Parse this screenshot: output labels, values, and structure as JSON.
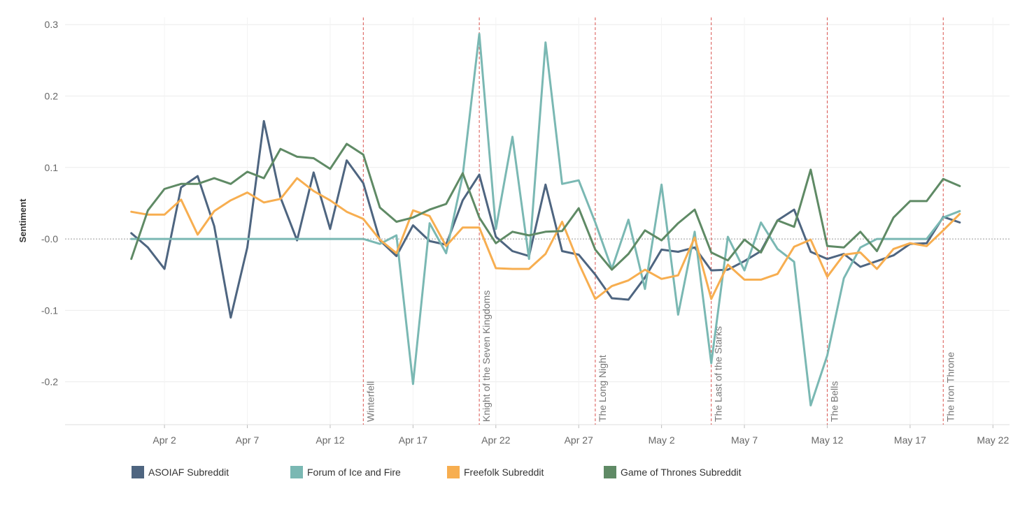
{
  "chart_data": {
    "type": "line",
    "ylabel": "Sentiment",
    "xlabel": "",
    "title": "",
    "x_start_date": "2019-03-31",
    "x_end_date": "2019-05-20",
    "xlim_dates": [
      "2019-03-27",
      "2019-05-23"
    ],
    "ylim": [
      -0.26,
      0.31
    ],
    "y_ticks": [
      0.3,
      0.2,
      0.1,
      -0.0,
      -0.1,
      -0.2
    ],
    "y_tick_labels": [
      "0.3",
      "0.2",
      "0.1",
      "-0.0",
      "-0.1",
      "-0.2"
    ],
    "x_ticks": [
      "2019-04-02",
      "2019-04-07",
      "2019-04-12",
      "2019-04-17",
      "2019-04-22",
      "2019-04-27",
      "2019-05-02",
      "2019-05-07",
      "2019-05-12",
      "2019-05-17",
      "2019-05-22"
    ],
    "x_tick_labels": [
      "Apr 2",
      "Apr 7",
      "Apr 12",
      "Apr 17",
      "Apr 22",
      "Apr 27",
      "May 2",
      "May 7",
      "May 12",
      "May 17",
      "May 22"
    ],
    "grid": true,
    "legend_position": "bottom",
    "episodes": [
      {
        "label": "Winterfell",
        "date": "2019-04-14"
      },
      {
        "label": "Knight of the Seven Kingdoms",
        "date": "2019-04-21"
      },
      {
        "label": "The Long Night",
        "date": "2019-04-28"
      },
      {
        "label": "The Last of the Starks",
        "date": "2019-05-05"
      },
      {
        "label": "The Bells",
        "date": "2019-05-12"
      },
      {
        "label": "The Iron Throne",
        "date": "2019-05-19"
      }
    ],
    "episode_line_color": "#d9534f",
    "zero_line_color": "#999999",
    "series": [
      {
        "name": "ASOIAF Subreddit",
        "color": "#4e6580",
        "values": [
          0.008,
          -0.012,
          -0.042,
          0.072,
          0.088,
          0.018,
          -0.11,
          -0.012,
          0.165,
          0.058,
          -0.002,
          0.093,
          0.014,
          0.11,
          0.078,
          -0.002,
          -0.024,
          0.019,
          -0.003,
          -0.008,
          0.054,
          0.09,
          0.003,
          -0.017,
          -0.024,
          0.076,
          -0.017,
          -0.022,
          -0.05,
          -0.083,
          -0.085,
          -0.054,
          -0.015,
          -0.018,
          -0.012,
          -0.044,
          -0.043,
          -0.031,
          -0.017,
          0.026,
          0.041,
          -0.018,
          -0.028,
          -0.021,
          -0.039,
          -0.031,
          -0.023,
          -0.007,
          -0.006,
          0.031,
          0.023
        ]
      },
      {
        "name": "Forum of Ice and Fire",
        "color": "#7ab8b3",
        "values": [
          0.0,
          0.0,
          0.0,
          0.0,
          0.0,
          0.0,
          0.0,
          0.0,
          0.0,
          0.0,
          0.0,
          0.0,
          0.0,
          0.0,
          0.0,
          -0.007,
          0.005,
          -0.203,
          0.022,
          -0.02,
          0.089,
          0.287,
          0.014,
          0.143,
          -0.028,
          0.275,
          0.077,
          0.082,
          0.023,
          -0.042,
          0.027,
          -0.07,
          0.076,
          -0.106,
          0.01,
          -0.174,
          0.003,
          -0.044,
          0.023,
          -0.014,
          -0.032,
          -0.233,
          -0.163,
          -0.055,
          -0.012,
          0.0,
          0.0,
          0.0,
          0.0,
          0.03,
          0.039
        ]
      },
      {
        "name": "Freefolk Subreddit",
        "color": "#f7ae50",
        "values": [
          0.038,
          0.034,
          0.034,
          0.055,
          0.006,
          0.039,
          0.054,
          0.065,
          0.051,
          0.056,
          0.085,
          0.067,
          0.054,
          0.038,
          0.028,
          -0.001,
          -0.02,
          0.04,
          0.032,
          -0.01,
          0.016,
          0.016,
          -0.041,
          -0.042,
          -0.042,
          -0.021,
          0.024,
          -0.034,
          -0.084,
          -0.066,
          -0.058,
          -0.043,
          -0.056,
          -0.051,
          0.002,
          -0.084,
          -0.036,
          -0.057,
          -0.057,
          -0.049,
          -0.011,
          -0.001,
          -0.053,
          -0.022,
          -0.019,
          -0.042,
          -0.014,
          -0.006,
          -0.01,
          0.012,
          0.035
        ]
      },
      {
        "name": "Game of Thrones Subreddit",
        "color": "#5f8a65",
        "values": [
          -0.028,
          0.04,
          0.07,
          0.077,
          0.077,
          0.085,
          0.077,
          0.094,
          0.085,
          0.126,
          0.115,
          0.113,
          0.098,
          0.133,
          0.118,
          0.044,
          0.024,
          0.03,
          0.041,
          0.049,
          0.092,
          0.03,
          -0.006,
          0.01,
          0.005,
          0.01,
          0.011,
          0.043,
          -0.015,
          -0.043,
          -0.021,
          0.012,
          -0.002,
          0.022,
          0.041,
          -0.019,
          -0.03,
          -0.001,
          -0.019,
          0.026,
          0.017,
          0.097,
          -0.01,
          -0.012,
          0.01,
          -0.017,
          0.03,
          0.053,
          0.053,
          0.084,
          0.074
        ]
      }
    ]
  }
}
